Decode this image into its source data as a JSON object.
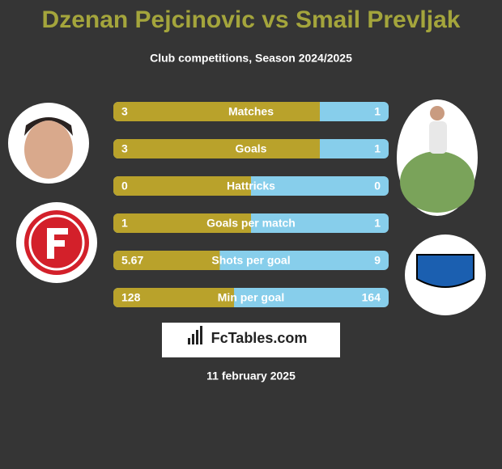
{
  "header": {
    "title": "Dzenan Pejcinovic vs Smail Prevljak",
    "subtitle": "Club competitions, Season 2024/2025"
  },
  "rows": [
    {
      "label": "Matches",
      "left": "3",
      "right": "1"
    },
    {
      "label": "Goals",
      "left": "3",
      "right": "1"
    },
    {
      "label": "Hattricks",
      "left": "0",
      "right": "0"
    },
    {
      "label": "Goals per match",
      "left": "1",
      "right": "1"
    },
    {
      "label": "Shots per goal",
      "left": "5.67",
      "right": "9"
    },
    {
      "label": "Min per goal",
      "left": "128",
      "right": "164"
    }
  ],
  "brand": "FcTables.com",
  "date": "11 february 2025"
}
